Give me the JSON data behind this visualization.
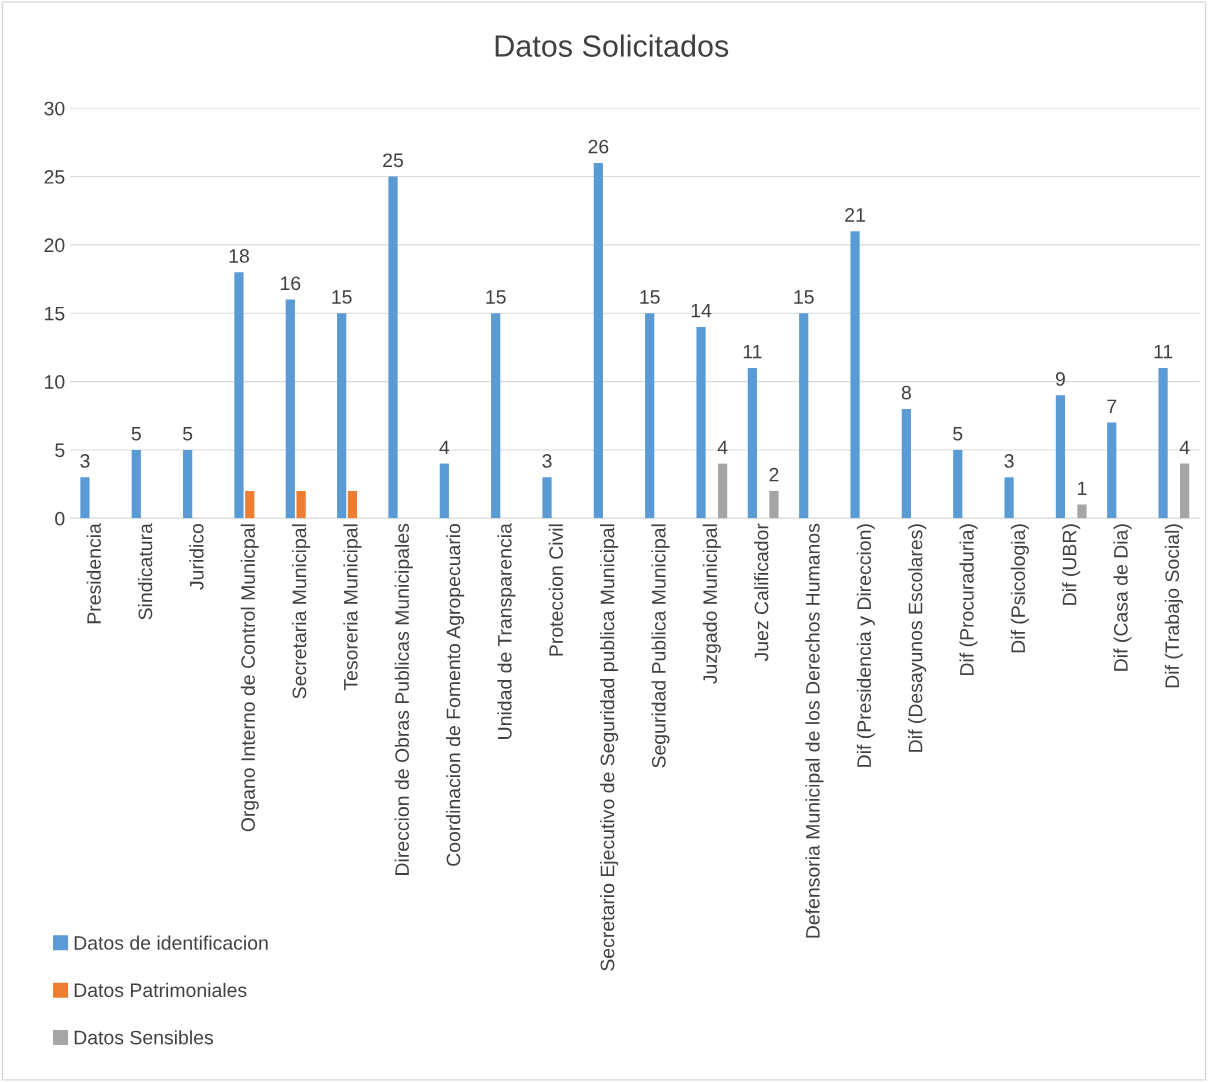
{
  "chart_data": {
    "type": "bar",
    "title": "Datos Solicitados",
    "categories": [
      "Presidencia",
      "Sindicatura",
      "Juridico",
      "Organo Interno de Control Municpal",
      "Secretaria Municipal",
      "Tesoreria Municipal",
      "Direccion de Obras Publicas Municipales",
      "Coordinacion de Fomento Agropecuario",
      "Unidad de Transparencia",
      "Proteccion Civil",
      "Secretario Ejecutivo de Seguridad publica Municipal",
      "Seguridad Publica Municipal",
      "Juzgado Municipal",
      "Juez Calificador",
      "Defensoria Municipal de los Derechos Humanos",
      "Dif (Presidencia y Direccion)",
      "Dif (Desayunos Escolares)",
      "Dif (Procuraduria)",
      "Dif (Psicologia)",
      "Dif (UBR)",
      "Dif (Casa de Dia)",
      "Dif (Trabajo Social)"
    ],
    "series": [
      {
        "name": "Datos de identificacion",
        "color": "#5b9bd5",
        "values": [
          3,
          5,
          5,
          18,
          16,
          15,
          25,
          4,
          15,
          3,
          26,
          15,
          14,
          11,
          15,
          21,
          8,
          5,
          3,
          9,
          7,
          11
        ],
        "value_labels": [
          "3",
          "5",
          "5",
          "18",
          "16",
          "15",
          "25",
          "4",
          "15",
          "3",
          "26",
          "15",
          "14",
          "11",
          "15",
          "21",
          "8",
          "5",
          "3",
          "9",
          "7",
          "11"
        ]
      },
      {
        "name": "Datos Patrimoniales",
        "color": "#ed7d31",
        "values": [
          null,
          null,
          null,
          2,
          2,
          2,
          null,
          null,
          null,
          null,
          null,
          null,
          null,
          null,
          null,
          null,
          null,
          null,
          null,
          null,
          null,
          null
        ]
      },
      {
        "name": "Datos Sensibles",
        "color": "#a5a5a5",
        "values": [
          null,
          null,
          null,
          null,
          null,
          null,
          null,
          null,
          null,
          null,
          null,
          null,
          4,
          2,
          null,
          null,
          null,
          null,
          null,
          1,
          null,
          4
        ],
        "value_labels": [
          null,
          null,
          null,
          null,
          null,
          null,
          null,
          null,
          null,
          null,
          null,
          null,
          "4",
          "2",
          null,
          null,
          null,
          null,
          null,
          "1",
          null,
          "4"
        ]
      }
    ],
    "ylim": [
      0,
      30
    ],
    "yticks": [
      0,
      5,
      10,
      15,
      20,
      25,
      30
    ],
    "grid": "y",
    "legend": "bottom left"
  }
}
